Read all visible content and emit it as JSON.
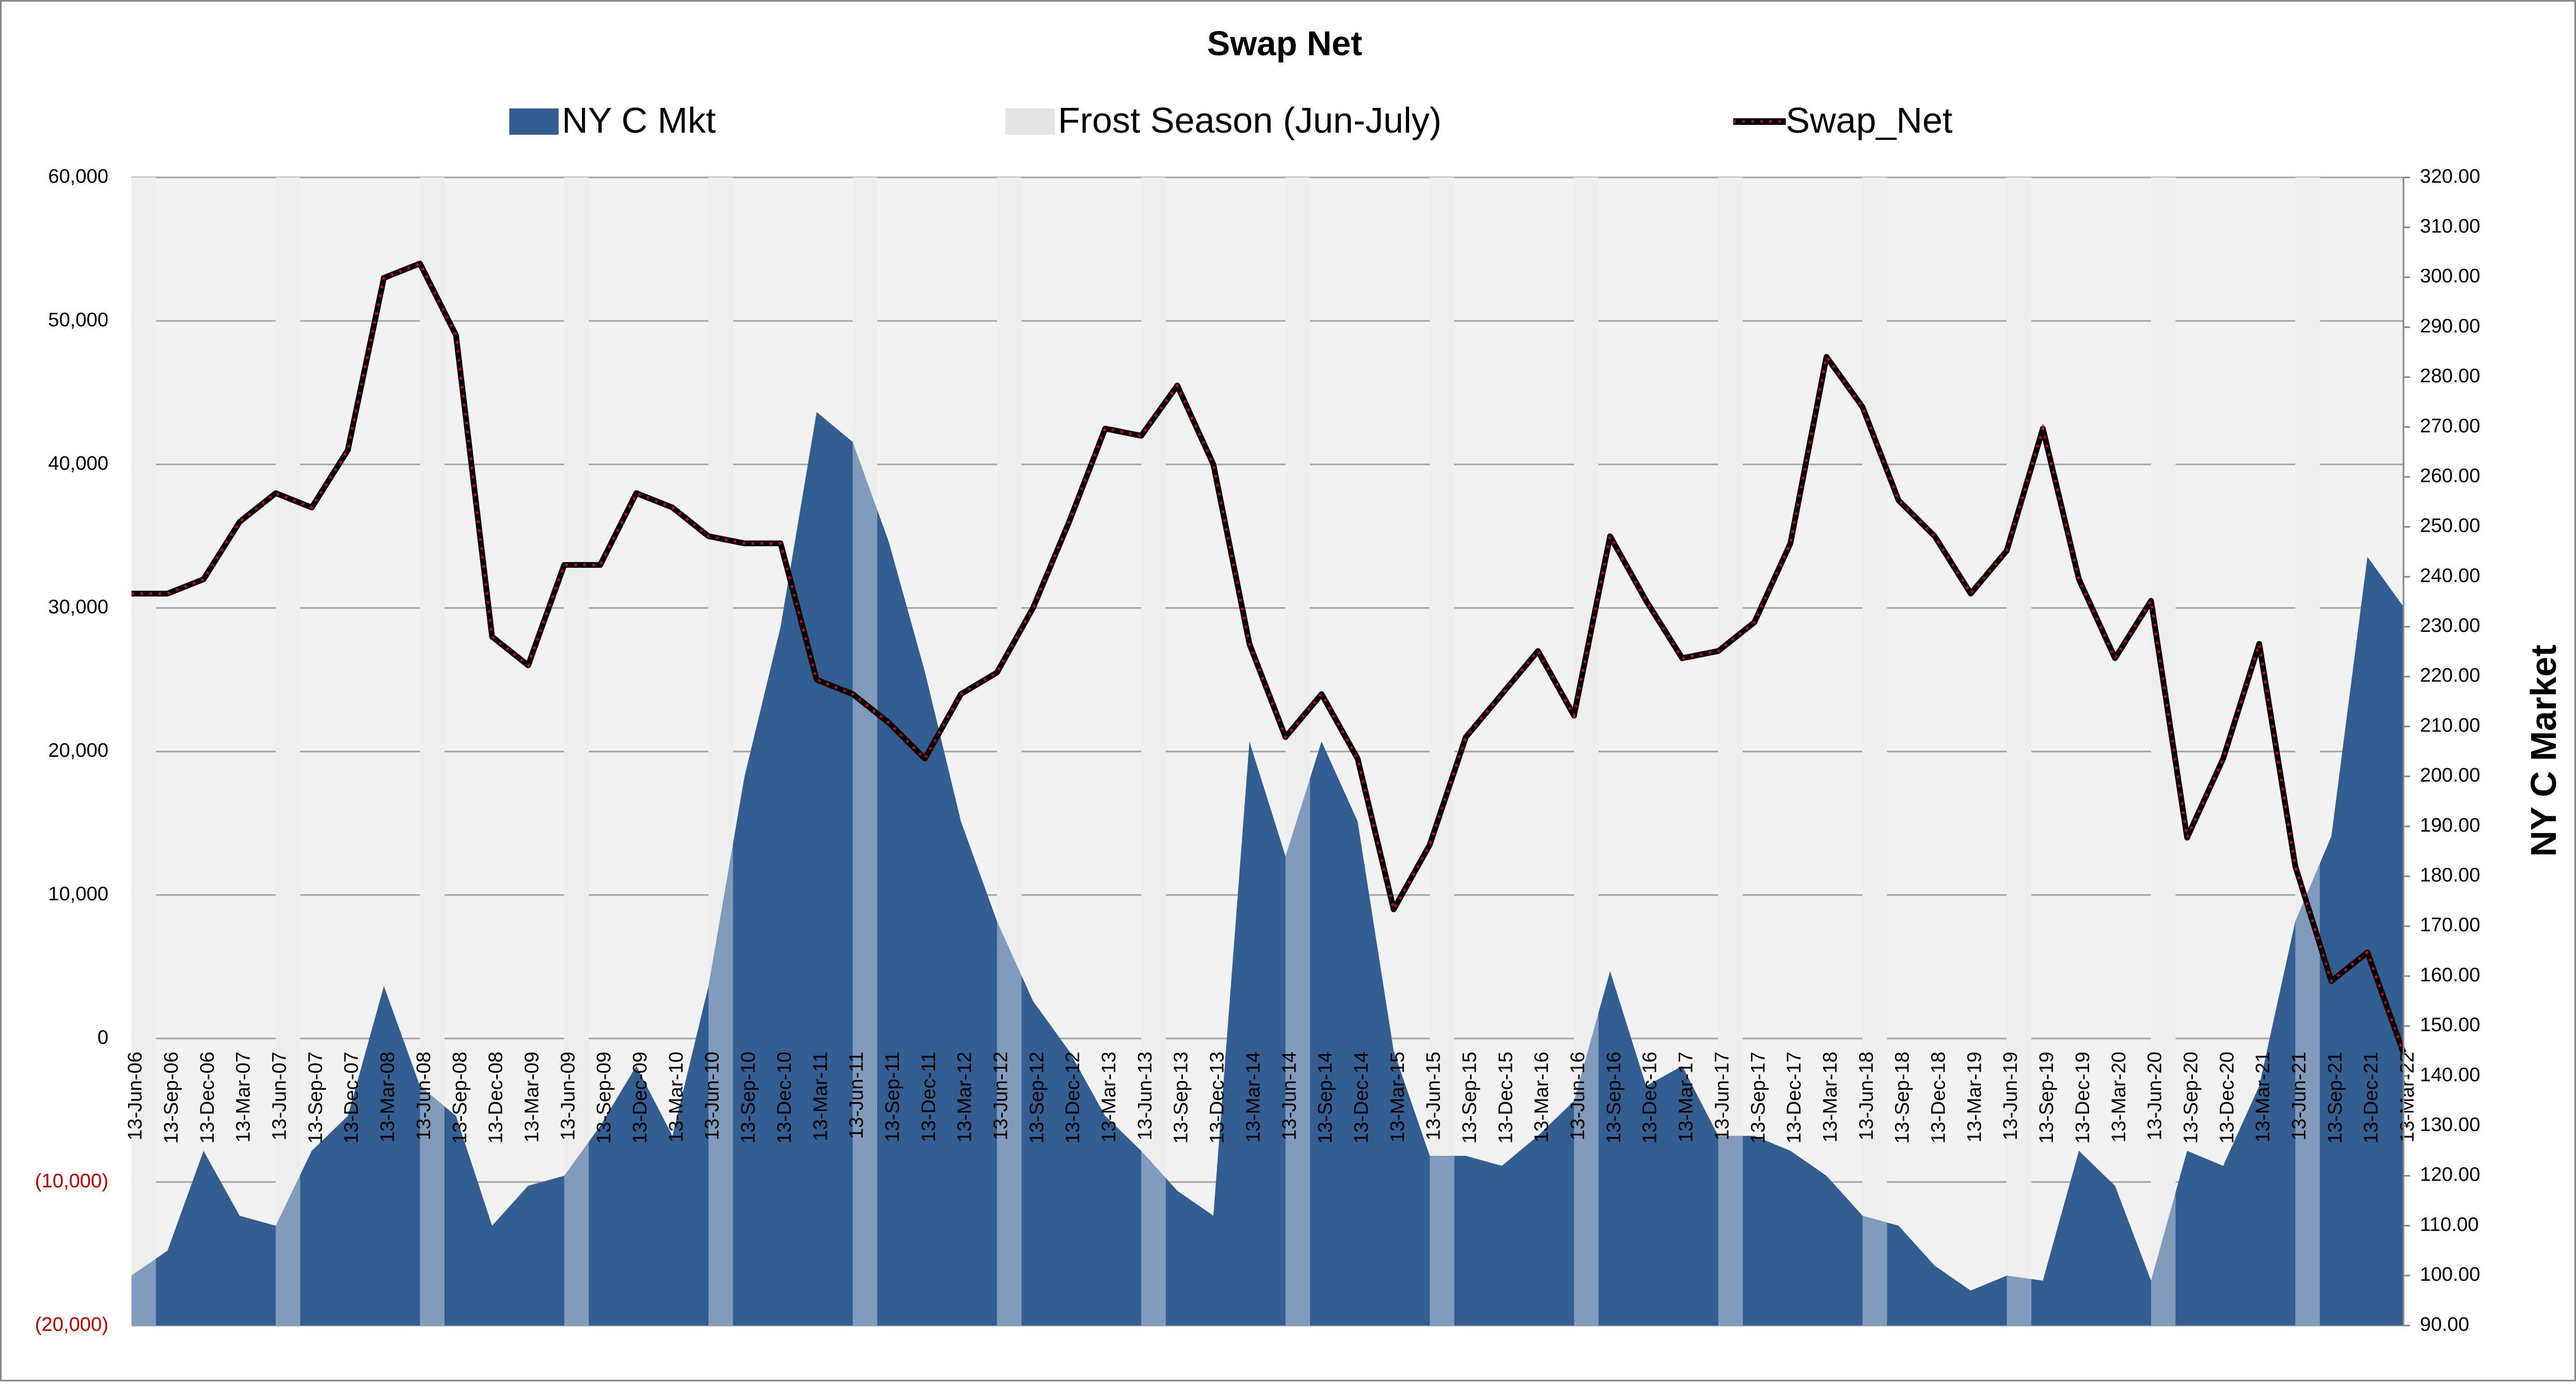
{
  "chart_data": {
    "type": "combo",
    "title": "Swap Net",
    "y2label": "NY C Market",
    "categories": [
      "13-Jun-06",
      "13-Sep-06",
      "13-Dec-06",
      "13-Mar-07",
      "13-Jun-07",
      "13-Sep-07",
      "13-Dec-07",
      "13-Mar-08",
      "13-Jun-08",
      "13-Sep-08",
      "13-Dec-08",
      "13-Mar-09",
      "13-Jun-09",
      "13-Sep-09",
      "13-Dec-09",
      "13-Mar-10",
      "13-Jun-10",
      "13-Sep-10",
      "13-Dec-10",
      "13-Mar-11",
      "13-Jun-11",
      "13-Sep-11",
      "13-Dec-11",
      "13-Mar-12",
      "13-Jun-12",
      "13-Sep-12",
      "13-Dec-12",
      "13-Mar-13",
      "13-Jun-13",
      "13-Sep-13",
      "13-Dec-13",
      "13-Mar-14",
      "13-Jun-14",
      "13-Sep-14",
      "13-Dec-14",
      "13-Mar-15",
      "13-Jun-15",
      "13-Sep-15",
      "13-Dec-15",
      "13-Mar-16",
      "13-Jun-16",
      "13-Sep-16",
      "13-Dec-16",
      "13-Mar-17",
      "13-Jun-17",
      "13-Sep-17",
      "13-Dec-17",
      "13-Mar-18",
      "13-Jun-18",
      "13-Sep-18",
      "13-Dec-18",
      "13-Mar-19",
      "13-Jun-19",
      "13-Sep-19",
      "13-Dec-19",
      "13-Mar-20",
      "13-Jun-20",
      "13-Sep-20",
      "13-Dec-20",
      "13-Mar-21",
      "13-Jun-21",
      "13-Sep-21",
      "13-Dec-21",
      "13-Mar-22"
    ],
    "series": [
      {
        "name": "NY C Mkt",
        "type": "area",
        "axis": "y2",
        "color": "#335e92",
        "values": [
          100,
          105,
          125,
          112,
          110,
          125,
          132,
          158,
          138,
          132,
          110,
          118,
          120,
          130,
          142,
          128,
          158,
          200,
          230,
          273,
          267,
          247,
          221,
          191,
          171,
          155,
          145,
          132,
          125,
          117,
          112,
          207,
          184,
          207,
          191,
          145,
          124,
          124,
          122,
          128,
          135,
          161,
          138,
          142,
          128,
          128,
          125,
          120,
          112,
          110,
          102,
          97,
          100,
          99,
          125,
          118,
          99,
          125,
          122,
          138,
          171,
          188,
          244,
          234
        ]
      },
      {
        "name": "Frost Season (Jun-July)",
        "type": "bar",
        "axis": "y2",
        "color": "#e4e4e4",
        "values": [
          320,
          null,
          null,
          null,
          320,
          null,
          null,
          null,
          320,
          null,
          null,
          null,
          320,
          null,
          null,
          null,
          320,
          null,
          null,
          null,
          320,
          null,
          null,
          null,
          320,
          null,
          null,
          null,
          320,
          null,
          null,
          null,
          320,
          null,
          null,
          null,
          320,
          null,
          null,
          null,
          320,
          null,
          null,
          null,
          320,
          null,
          null,
          null,
          320,
          null,
          null,
          null,
          320,
          null,
          null,
          null,
          320,
          null,
          null,
          null,
          320,
          null,
          null,
          null
        ]
      },
      {
        "name": "Swap_Net",
        "type": "line",
        "axis": "y",
        "color": "#000000",
        "marker_color": "#e00000",
        "values": [
          31000,
          31000,
          32000,
          36000,
          38000,
          37000,
          41000,
          53000,
          54000,
          49000,
          28000,
          26000,
          33000,
          33000,
          38000,
          37000,
          35000,
          34500,
          34500,
          25000,
          24000,
          22000,
          19500,
          24000,
          25500,
          30000,
          36000,
          42500,
          42000,
          45500,
          40000,
          27500,
          21000,
          24000,
          19500,
          9000,
          13500,
          21000,
          24000,
          27000,
          22500,
          35000,
          30500,
          26500,
          27000,
          29000,
          34500,
          47500,
          44000,
          37500,
          35000,
          31000,
          34000,
          42500,
          32000,
          26500,
          30500,
          14000,
          19500,
          27500,
          12000,
          4000,
          6000,
          -1000
        ]
      }
    ],
    "ylim": [
      -20000,
      60000
    ],
    "yticks": [
      {
        "value": -20000,
        "label": "(20,000)"
      },
      {
        "value": -10000,
        "label": "(10,000)"
      },
      0,
      {
        "value": 10000,
        "label": "10,000"
      },
      {
        "value": 20000,
        "label": "20,000"
      },
      {
        "value": 30000,
        "label": "30,000"
      },
      {
        "value": 40000,
        "label": "40,000"
      },
      {
        "value": 50000,
        "label": "50,000"
      },
      {
        "value": 60000,
        "label": "60,000"
      }
    ],
    "negative_tick_color": "#c00000",
    "y2lim": [
      90,
      320
    ],
    "y2ticks": [
      {
        "value": 90,
        "label": "90.00"
      },
      {
        "value": 100,
        "label": "100.00"
      },
      {
        "value": 110,
        "label": "110.00"
      },
      {
        "value": 120,
        "label": "120.00"
      },
      {
        "value": 130,
        "label": "130.00"
      },
      {
        "value": 140,
        "label": "140.00"
      },
      {
        "value": 150,
        "label": "150.00"
      },
      {
        "value": 160,
        "label": "160.00"
      },
      {
        "value": 170,
        "label": "170.00"
      },
      {
        "value": 180,
        "label": "180.00"
      },
      {
        "value": 190,
        "label": "190.00"
      },
      {
        "value": 200,
        "label": "200.00"
      },
      {
        "value": 210,
        "label": "210.00"
      },
      {
        "value": 220,
        "label": "220.00"
      },
      {
        "value": 230,
        "label": "230.00"
      },
      {
        "value": 240,
        "label": "240.00"
      },
      {
        "value": 250,
        "label": "250.00"
      },
      {
        "value": 260,
        "label": "260.00"
      },
      {
        "value": 270,
        "label": "270.00"
      },
      {
        "value": 280,
        "label": "280.00"
      },
      {
        "value": 290,
        "label": "290.00"
      },
      {
        "value": 300,
        "label": "300.00"
      },
      {
        "value": 310,
        "label": "310.00"
      },
      {
        "value": 320,
        "label": "320.00"
      }
    ],
    "grid": true,
    "legend": "top"
  }
}
